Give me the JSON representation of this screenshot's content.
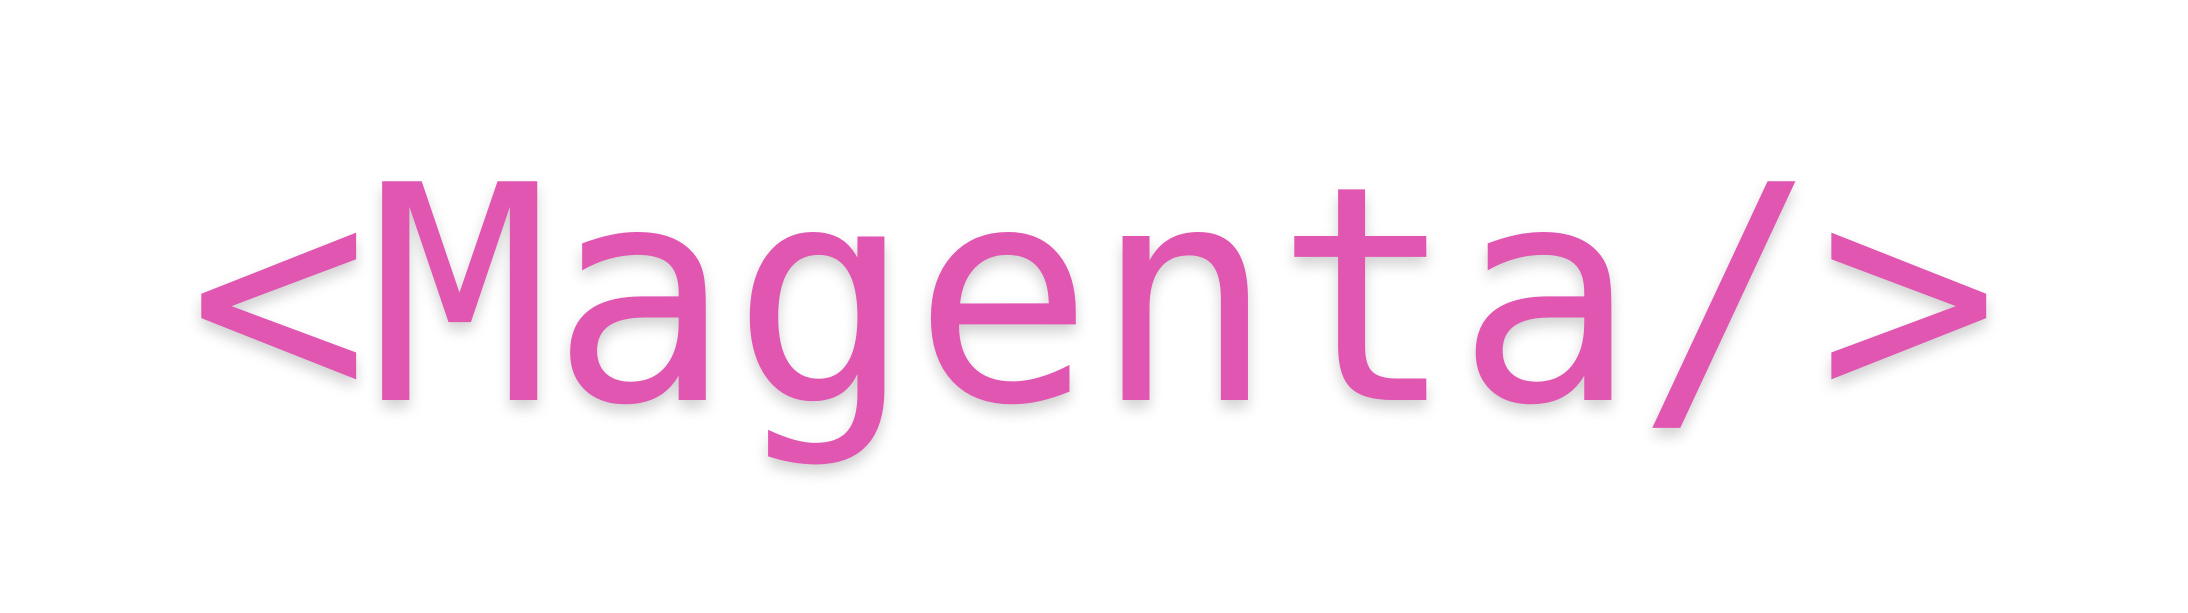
{
  "logo": {
    "text": "<Magenta/>",
    "color": "#E056B0"
  }
}
